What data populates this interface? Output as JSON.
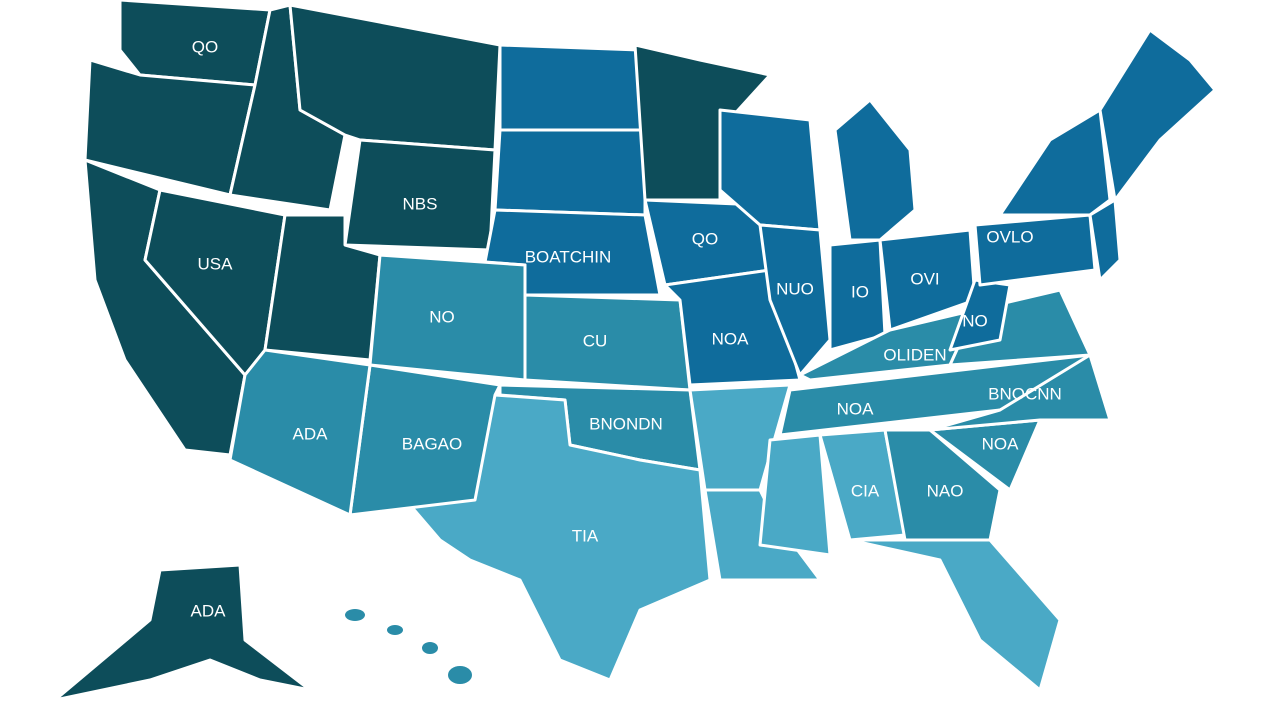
{
  "labels": [
    {
      "text": "QO"
    },
    {
      "text": "NBS"
    },
    {
      "text": "USA"
    },
    {
      "text": "BOATCHIN"
    },
    {
      "text": "QO"
    },
    {
      "text": "NO"
    },
    {
      "text": "CU"
    },
    {
      "text": "NOA"
    },
    {
      "text": "NUO"
    },
    {
      "text": "IO"
    },
    {
      "text": "OVI"
    },
    {
      "text": "OVLO"
    },
    {
      "text": "OLIDEN"
    },
    {
      "text": "NO"
    },
    {
      "text": "BNOCNN"
    },
    {
      "text": "NOA"
    },
    {
      "text": "NOA"
    },
    {
      "text": "ADA"
    },
    {
      "text": "BAGAO"
    },
    {
      "text": "BNONDN"
    },
    {
      "text": "TIA"
    },
    {
      "text": "CIA"
    },
    {
      "text": "NAO"
    },
    {
      "text": "ADA"
    }
  ]
}
